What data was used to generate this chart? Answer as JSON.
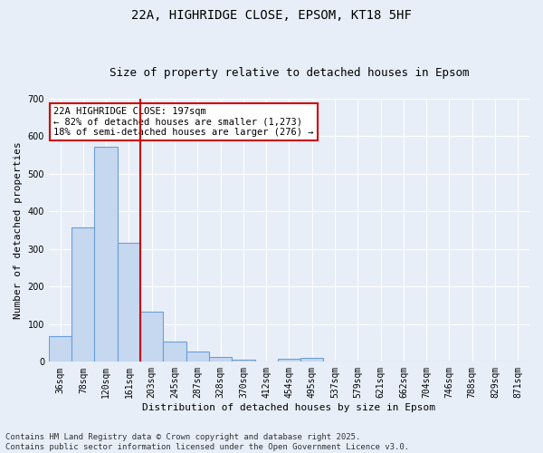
{
  "title_line1": "22A, HIGHRIDGE CLOSE, EPSOM, KT18 5HF",
  "title_line2": "Size of property relative to detached houses in Epsom",
  "xlabel": "Distribution of detached houses by size in Epsom",
  "ylabel": "Number of detached properties",
  "bar_color": "#c5d8f0",
  "bar_edge_color": "#6a9fd8",
  "background_color": "#e8eef8",
  "grid_color": "#ffffff",
  "categories": [
    "36sqm",
    "78sqm",
    "120sqm",
    "161sqm",
    "203sqm",
    "245sqm",
    "287sqm",
    "328sqm",
    "370sqm",
    "412sqm",
    "454sqm",
    "495sqm",
    "537sqm",
    "579sqm",
    "621sqm",
    "662sqm",
    "704sqm",
    "746sqm",
    "788sqm",
    "829sqm",
    "871sqm"
  ],
  "values": [
    68,
    357,
    573,
    316,
    134,
    55,
    27,
    14,
    6,
    2,
    9,
    10,
    2,
    0,
    0,
    0,
    0,
    0,
    0,
    0,
    0
  ],
  "ylim": [
    0,
    700
  ],
  "yticks": [
    0,
    100,
    200,
    300,
    400,
    500,
    600,
    700
  ],
  "property_line_idx": 3.5,
  "property_line_color": "#cc0000",
  "annotation_text": "22A HIGHRIDGE CLOSE: 197sqm\n← 82% of detached houses are smaller (1,273)\n18% of semi-detached houses are larger (276) →",
  "annotation_box_color": "#ffffff",
  "annotation_box_edge": "#cc0000",
  "footer_text": "Contains HM Land Registry data © Crown copyright and database right 2025.\nContains public sector information licensed under the Open Government Licence v3.0.",
  "title_fontsize": 10,
  "subtitle_fontsize": 9,
  "axis_label_fontsize": 8,
  "tick_fontsize": 7,
  "annotation_fontsize": 7.5,
  "footer_fontsize": 6.5
}
